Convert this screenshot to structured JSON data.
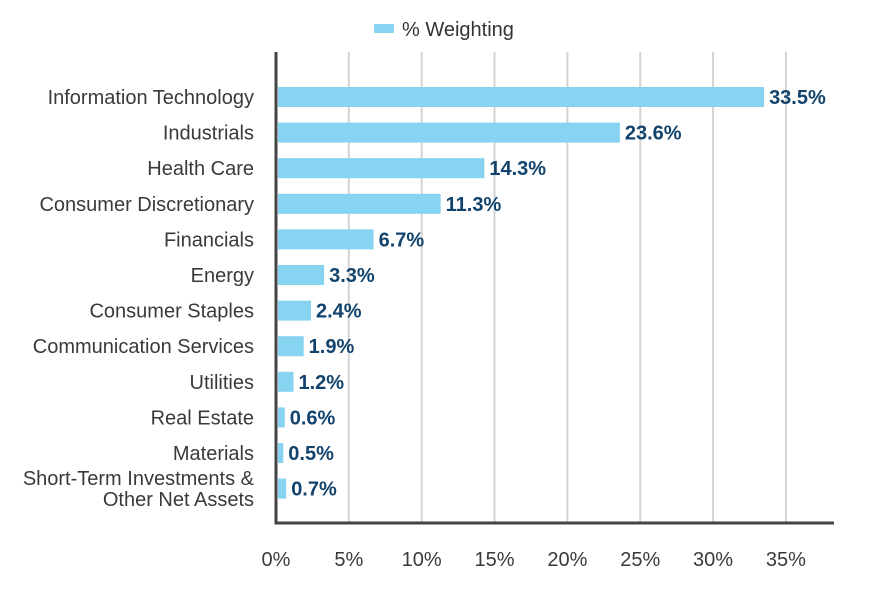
{
  "legend": {
    "label": "% Weighting"
  },
  "colors": {
    "bar": "#86d4f1",
    "data_label": "#12436d",
    "axis": "#444444",
    "grid": "#d3d3d3"
  },
  "chart_data": {
    "type": "bar",
    "orientation": "horizontal",
    "categories": [
      [
        "Information Technology"
      ],
      [
        "Industrials"
      ],
      [
        "Health Care"
      ],
      [
        "Consumer Discretionary"
      ],
      [
        "Financials"
      ],
      [
        "Energy"
      ],
      [
        "Consumer Staples"
      ],
      [
        "Communication Services"
      ],
      [
        "Utilities"
      ],
      [
        "Real Estate"
      ],
      [
        "Materials"
      ],
      [
        "Short-Term Investments &",
        "Other Net Assets"
      ]
    ],
    "series": [
      {
        "name": "% Weighting",
        "values": [
          33.5,
          23.6,
          14.3,
          11.3,
          6.7,
          3.3,
          2.4,
          1.9,
          1.2,
          0.6,
          0.5,
          0.7
        ],
        "labels": [
          "33.5%",
          "23.6%",
          "14.3%",
          "11.3%",
          "6.7%",
          "3.3%",
          "2.4%",
          "1.9%",
          "1.2%",
          "0.6%",
          "0.5%",
          "0.7%"
        ]
      }
    ],
    "x_ticks": [
      "0%",
      "5%",
      "10%",
      "15%",
      "20%",
      "25%",
      "30%",
      "35%"
    ],
    "x_tick_values": [
      0,
      5,
      10,
      15,
      20,
      25,
      30,
      35
    ],
    "xlim": [
      0,
      38.3
    ],
    "grid": true,
    "legend_position": "top-center"
  }
}
